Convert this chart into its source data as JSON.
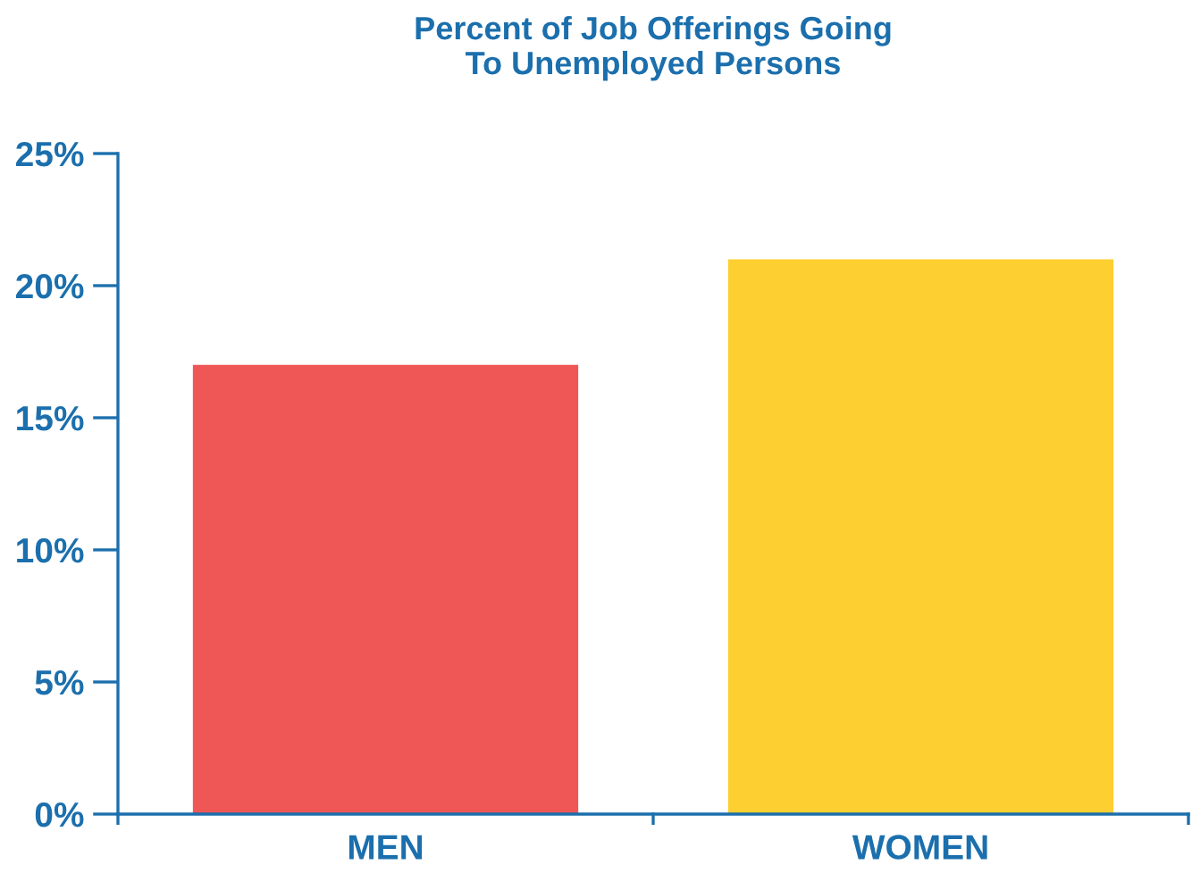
{
  "chart_data": {
    "type": "bar",
    "title": "Percent of Job Offerings Going\nTo Unemployed Persons",
    "categories": [
      "MEN",
      "WOMEN"
    ],
    "values": [
      17,
      21
    ],
    "colors": [
      "#ef5656",
      "#fecf30"
    ],
    "ylim": [
      0,
      25
    ],
    "yticks": [
      {
        "value": 0,
        "label": "0%"
      },
      {
        "value": 5,
        "label": "5%"
      },
      {
        "value": 10,
        "label": "10%"
      },
      {
        "value": 15,
        "label": "15%"
      },
      {
        "value": 20,
        "label": "20%"
      },
      {
        "value": 25,
        "label": "25%"
      }
    ],
    "grid": false,
    "legend": false
  }
}
